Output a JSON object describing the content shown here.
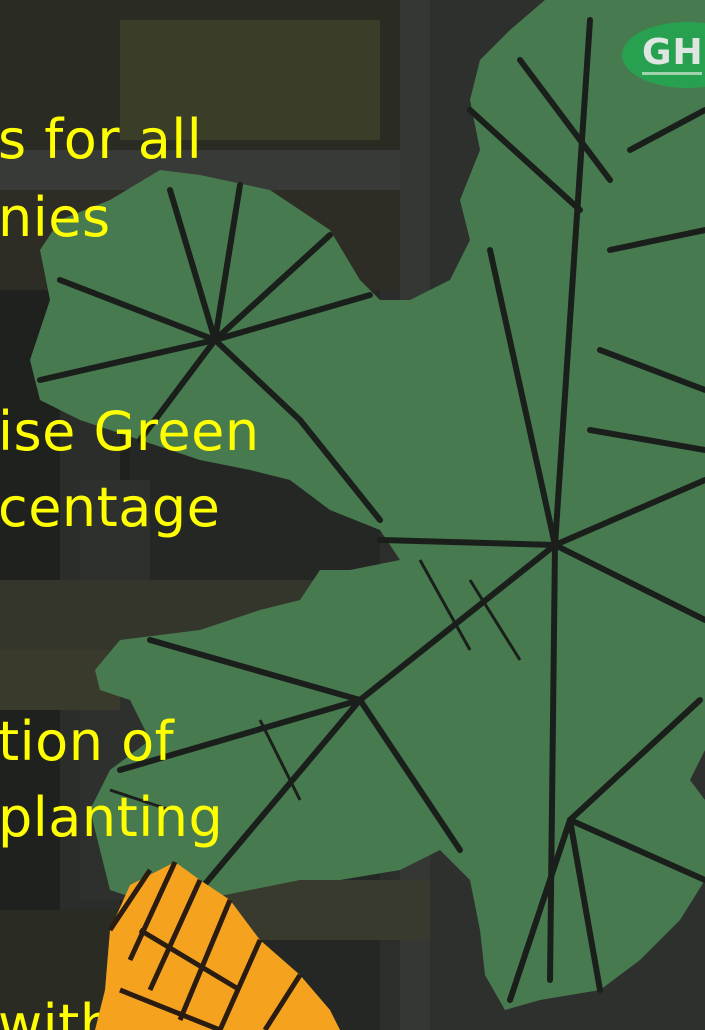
{
  "colors": {
    "background": "#242624",
    "leaf": "#477b4f",
    "vein": "#1b1f1c",
    "text": "#ffff00",
    "orange": "#f5a21f",
    "logo": "#27a150"
  },
  "slide": {
    "lines": [
      "s for all",
      "nies",
      "ise  Green",
      "centage",
      "tion of",
      "planting",
      "with less"
    ]
  },
  "logo": {
    "letters": "GH"
  },
  "icons": [
    "green-leaf-graphic",
    "orange-leaf-graphic",
    "logo-badge"
  ]
}
